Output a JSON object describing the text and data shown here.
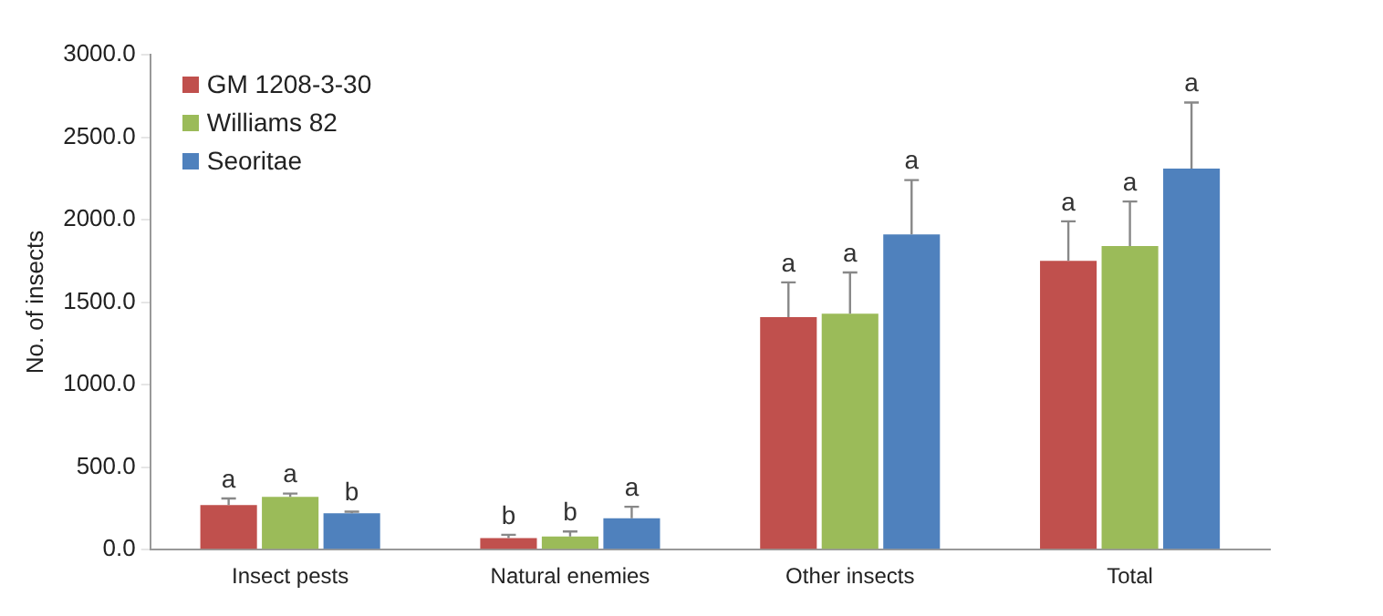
{
  "chart_data": {
    "type": "bar",
    "ylabel": "No. of insects",
    "categories": [
      "Insect pests",
      "Natural enemies",
      "Other insects",
      "Total"
    ],
    "series": [
      {
        "name": "GM 1208-3-30",
        "color": "#c0504d",
        "values": [
          270,
          70,
          1410,
          1750
        ],
        "errors": [
          [
            270,
            310
          ],
          [
            70,
            90
          ],
          [
            1410,
            1620
          ],
          [
            1750,
            1990
          ]
        ]
      },
      {
        "name": "Williams 82",
        "color": "#9bbb59",
        "values": [
          320,
          80,
          1430,
          1840
        ],
        "errors": [
          [
            320,
            340
          ],
          [
            80,
            110
          ],
          [
            1430,
            1680
          ],
          [
            1840,
            2110
          ]
        ]
      },
      {
        "name": "Seoritae",
        "color": "#4f81bd",
        "values": [
          220,
          190,
          1910,
          2310
        ],
        "errors": [
          [
            220,
            230
          ],
          [
            190,
            260
          ],
          [
            1910,
            2240
          ],
          [
            2310,
            2710
          ]
        ]
      }
    ],
    "ylim": [
      0,
      3000
    ],
    "yticks": [
      {
        "value": 0,
        "label": "0.0"
      },
      {
        "value": 500,
        "label": "500.0"
      },
      {
        "value": 1000,
        "label": "1000.0"
      },
      {
        "value": 1500,
        "label": "1500.0"
      },
      {
        "value": 2000,
        "label": "2000.0"
      },
      {
        "value": 2500,
        "label": "2500.0"
      },
      {
        "value": 3000,
        "label": "3000.0"
      }
    ],
    "grid": false,
    "legend": "top left",
    "annotations": [
      "a",
      "a",
      "b",
      "b",
      "b",
      "a",
      "a",
      "a",
      "a",
      "a",
      "a",
      "a"
    ]
  }
}
